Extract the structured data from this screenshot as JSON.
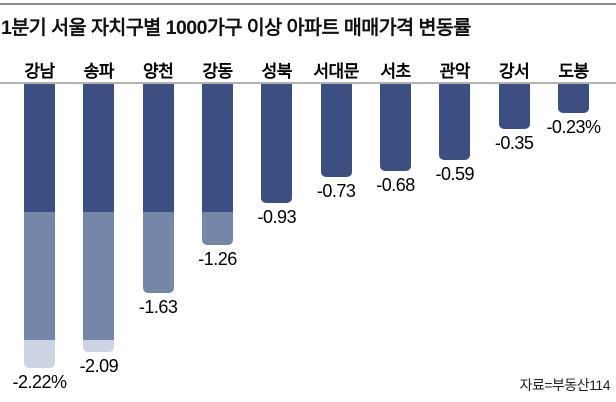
{
  "header": {
    "title": "1분기 서울 자치구별 1000가구 이상 아파트 매매가격 변동률"
  },
  "footer": {
    "source": "자료=부동산114"
  },
  "colors": {
    "bar_dark": "#3c4f82",
    "bar_medium": "#7587a8",
    "bar_light": "#ccd4e4",
    "baseline": "#b3b3b3",
    "top_rule": "#8f8f8f",
    "text": "#000000"
  },
  "chart_data": {
    "type": "bar",
    "orientation": "vertical",
    "direction": "negative-down-from-zero-baseline",
    "title": "1분기 서울 자치구별 1000가구 이상 아파트 매매가격 변동률",
    "categories": [
      "강남",
      "송파",
      "양천",
      "강동",
      "성북",
      "서대문",
      "서초",
      "관악",
      "강서",
      "도봉"
    ],
    "values": [
      -2.22,
      -2.09,
      -1.63,
      -1.26,
      -0.93,
      -0.73,
      -0.68,
      -0.59,
      -0.35,
      -0.23
    ],
    "value_labels": [
      "-2.22%",
      "-2.09",
      "-1.63",
      "-1.26",
      "-0.93",
      "-0.73",
      "-0.68",
      "-0.59",
      "-0.35",
      "-0.23%"
    ],
    "unit": "%",
    "ylim": [
      -2.4,
      0
    ],
    "grid": false,
    "legend": false,
    "value_label_position": "below-bar",
    "category_label_position": "above-baseline",
    "bar_color_bands_by_magnitude": [
      {
        "range": [
          0,
          1
        ],
        "color": "#3c4f82"
      },
      {
        "range": [
          1,
          2
        ],
        "color": "#7587a8"
      },
      {
        "range": [
          2,
          3
        ],
        "color": "#ccd4e4"
      }
    ],
    "source": "자료=부동산114"
  }
}
